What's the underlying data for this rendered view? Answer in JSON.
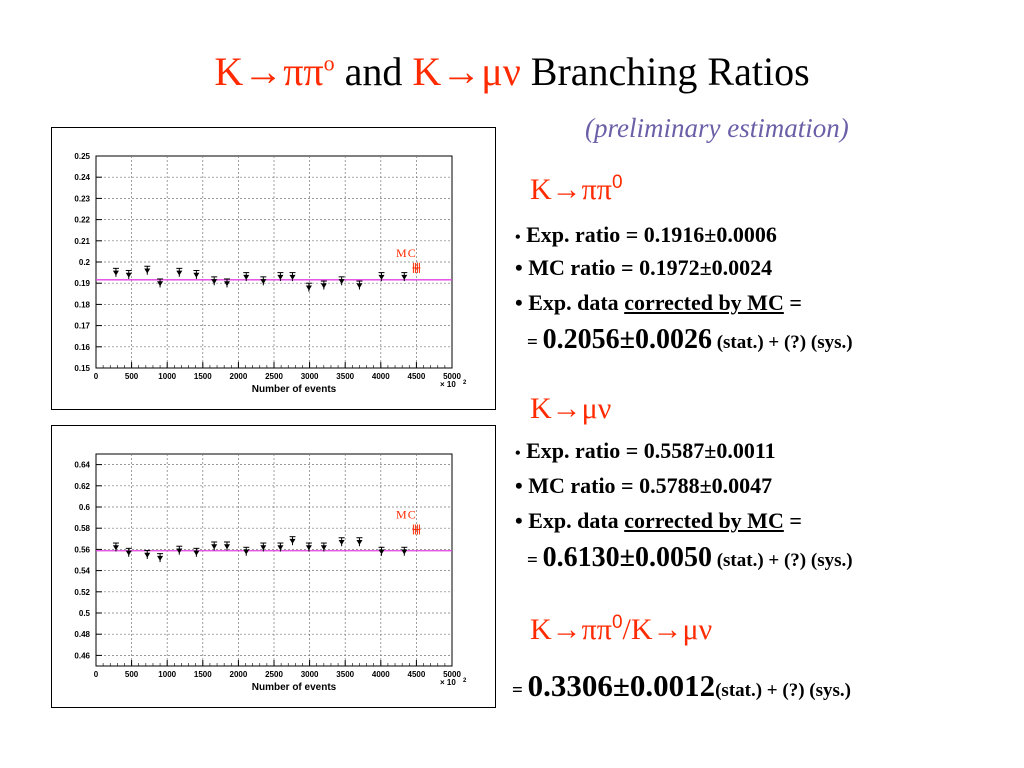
{
  "header": {
    "title_k1": "K→ππ",
    "title_o": "o",
    "title_and": " and ",
    "title_k2": "K→μν",
    "title_rest": "  Branching Ratios",
    "subtitle": "(preliminary estimation)"
  },
  "results": {
    "kpipi": {
      "head": "K→ππ",
      "head_sup": "0",
      "bullet": "•",
      "exp_ratio": " Exp. ratio = 0.1916±0.0006",
      "mc_ratio": " MC ratio = 0.1972±0.0024",
      "corr_pre": " Exp. data ",
      "corr_u": "corrected by MC",
      "corr_post": " =",
      "eq": "= ",
      "value": "0.2056±0.0026",
      "suffix": " (stat.) + (?) (sys.)"
    },
    "kmunu": {
      "head": "K→μν",
      "bullet": "•",
      "exp_ratio": " Exp. ratio = 0.5587±0.0011",
      "mc_ratio": " MC ratio = 0.5788±0.0047",
      "corr_pre": " Exp. data ",
      "corr_u": "corrected by MC",
      "corr_post": " =",
      "eq": "= ",
      "value": "0.6130±0.0050",
      "suffix": " (stat.) + (?) (sys.)"
    },
    "ratio": {
      "head_a": "K→ππ",
      "head_sup": "0",
      "head_b": "/K→μν",
      "eq": "= ",
      "value": "0.3306±0.0012",
      "suffix": "(stat.) + (?) (sys.)"
    }
  },
  "chart_data": [
    {
      "type": "scatter",
      "title": "",
      "xlabel": "Number of events",
      "x_multiplier": "× 10",
      "x_multiplier_exp": "2",
      "ylabel": "",
      "xlim": [
        0,
        5000
      ],
      "ylim": [
        0.15,
        0.25
      ],
      "xticks": [
        "0",
        "500",
        "1000",
        "1500",
        "2000",
        "2500",
        "3000",
        "3500",
        "4000",
        "4500",
        "5000"
      ],
      "yticks": [
        "0.15",
        "0.16",
        "0.17",
        "0.18",
        "0.19",
        "0.2",
        "0.21",
        "0.22",
        "0.23",
        "0.24",
        "0.25"
      ],
      "grid": true,
      "mc_label": "MC",
      "mc_marker": {
        "x": 4500,
        "y": 0.1972,
        "err": 0.0024
      },
      "fit_line": {
        "y": 0.1916,
        "color": "#e040e0"
      },
      "points": {
        "x": [
          280,
          460,
          720,
          900,
          1170,
          1410,
          1660,
          1840,
          2110,
          2350,
          2590,
          2760,
          2990,
          3200,
          3450,
          3700,
          4010,
          4330
        ],
        "y": [
          0.195,
          0.194,
          0.196,
          0.19,
          0.195,
          0.194,
          0.191,
          0.19,
          0.193,
          0.191,
          0.193,
          0.193,
          0.188,
          0.189,
          0.191,
          0.189,
          0.193,
          0.193
        ],
        "err": [
          0.002,
          0.002,
          0.002,
          0.002,
          0.002,
          0.002,
          0.002,
          0.002,
          0.002,
          0.002,
          0.002,
          0.002,
          0.002,
          0.002,
          0.002,
          0.002,
          0.002,
          0.002
        ]
      }
    },
    {
      "type": "scatter",
      "title": "",
      "xlabel": "Number of events",
      "x_multiplier": "× 10",
      "x_multiplier_exp": "2",
      "ylabel": "",
      "xlim": [
        0,
        5000
      ],
      "ylim": [
        0.45,
        0.65
      ],
      "xticks": [
        "0",
        "500",
        "1000",
        "1500",
        "2000",
        "2500",
        "3000",
        "3500",
        "4000",
        "4500",
        "5000"
      ],
      "yticks": [
        "0.46",
        "0.48",
        "0.5",
        "0.52",
        "0.54",
        "0.56",
        "0.58",
        "0.6",
        "0.62",
        "0.64"
      ],
      "grid": true,
      "mc_label": "MC",
      "mc_marker": {
        "x": 4500,
        "y": 0.5788,
        "err": 0.0047
      },
      "fit_line": {
        "y": 0.5587,
        "color": "#e040e0"
      },
      "points": {
        "x": [
          280,
          460,
          720,
          900,
          1170,
          1410,
          1660,
          1840,
          2110,
          2350,
          2590,
          2760,
          2990,
          3200,
          3450,
          3700,
          4010,
          4330
        ],
        "y": [
          0.562,
          0.557,
          0.555,
          0.552,
          0.559,
          0.557,
          0.563,
          0.563,
          0.558,
          0.562,
          0.562,
          0.568,
          0.562,
          0.562,
          0.567,
          0.567,
          0.558,
          0.558
        ],
        "err": [
          0.004,
          0.004,
          0.004,
          0.004,
          0.004,
          0.004,
          0.004,
          0.004,
          0.004,
          0.004,
          0.004,
          0.004,
          0.004,
          0.004,
          0.004,
          0.004,
          0.004,
          0.004
        ]
      }
    }
  ]
}
